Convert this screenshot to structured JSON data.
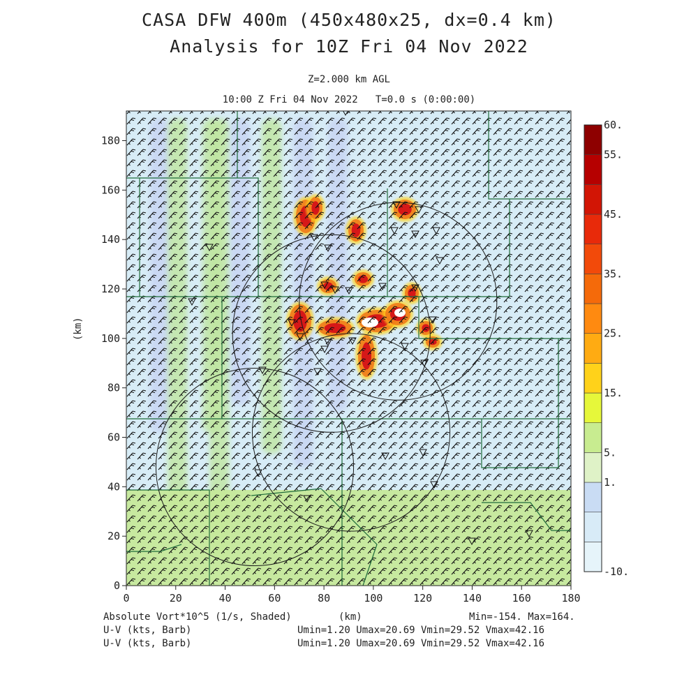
{
  "title_line1": "CASA DFW 400m (450x480x25, dx=0.4 km)",
  "title_line2": "Analysis for 10Z Fri 04 Nov 2022",
  "subtitle_level": "Z=2.000 km AGL",
  "subtitle_time": "10:00 Z Fri 04 Nov 2022   T=0.0 s (0:00:00)",
  "footer": {
    "field_label": "Absolute Vort*10^5 (1/s, Shaded)",
    "xunit": "(km)",
    "minmax": "Min=-154. Max=164.",
    "barb_label_1": "U-V (kts, Barb)",
    "barb_label_2": "U-V (kts, Barb)",
    "barb_stats_1": "Umin=1.20 Umax=20.69 Vmin=29.52 Vmax=42.16",
    "barb_stats_2": "Umin=1.20 Umax=20.69 Vmin=29.52 Vmax=42.16"
  },
  "colors": {
    "background_low": "#cfe3f2",
    "band_blue": "#c7d3f2",
    "band_green": "#bfe6a0",
    "high_orange": "#f07a18",
    "high_red": "#d61818",
    "county_lines": "#1f6b3a",
    "radar_rings": "#1a1a1a"
  },
  "chart_data": {
    "type": "heatmap",
    "title": "CASA DFW 400m (450x480x25, dx=0.4 km)",
    "xlabel": "(km)",
    "ylabel": "(km)",
    "xlim": [
      0,
      180
    ],
    "ylim": [
      0,
      192
    ],
    "xticks": [
      "0",
      "20",
      "40",
      "60",
      "80",
      "100",
      "120",
      "140",
      "160",
      "180"
    ],
    "yticks": [
      "0",
      "20",
      "40",
      "60",
      "80",
      "100",
      "120",
      "140",
      "160",
      "180"
    ],
    "colorbar": {
      "labels": [
        "60.",
        "55.",
        "45.",
        "35.",
        "25.",
        "15.",
        "5.",
        "1.",
        "-10."
      ],
      "levels": [
        -10,
        -5,
        0,
        1,
        5,
        10,
        15,
        20,
        25,
        30,
        35,
        40,
        45,
        50,
        55,
        60
      ],
      "colors": [
        "#e6f4fa",
        "#d8ebf7",
        "#c9dcf4",
        "#dff2c7",
        "#c8ec90",
        "#e6f73a",
        "#ffd21a",
        "#ffab12",
        "#ff8a10",
        "#f56a0a",
        "#f24a0a",
        "#e82a0a",
        "#d21505",
        "#b60000",
        "#8e0000"
      ]
    },
    "radar_sites": [
      {
        "x": 110,
        "y": 115,
        "r": 40
      },
      {
        "x": 83,
        "y": 102,
        "r": 40
      },
      {
        "x": 91,
        "y": 62,
        "r": 40
      },
      {
        "x": 52,
        "y": 48,
        "r": 40
      }
    ],
    "min": -154,
    "max": 164
  }
}
